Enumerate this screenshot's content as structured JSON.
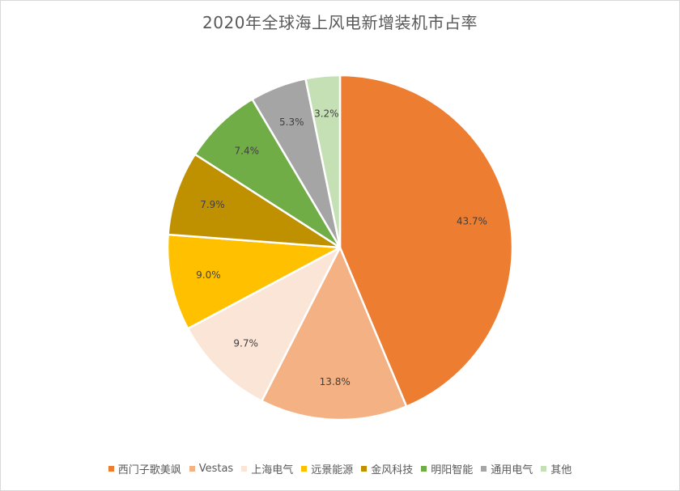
{
  "chart_data": {
    "type": "pie",
    "title": "2020年全球海上风电新增装机市占率",
    "legend_position": "bottom",
    "slices": [
      {
        "name": "西门子歌美飒",
        "value": 43.7,
        "label": "43.7%",
        "color": "#ED7D31"
      },
      {
        "name": "Vestas",
        "value": 13.8,
        "label": "13.8%",
        "color": "#F4B183"
      },
      {
        "name": "上海电气",
        "value": 9.7,
        "label": "9.7%",
        "color": "#FBE5D6"
      },
      {
        "name": "远景能源",
        "value": 9.0,
        "label": "9.0%",
        "color": "#FFC000"
      },
      {
        "name": "金风科技",
        "value": 7.9,
        "label": "7.9%",
        "color": "#BF9000"
      },
      {
        "name": "明阳智能",
        "value": 7.4,
        "label": "7.4%",
        "color": "#70AD47"
      },
      {
        "name": "通用电气",
        "value": 5.3,
        "label": "5.3%",
        "color": "#A5A5A5"
      },
      {
        "name": "其他",
        "value": 3.2,
        "label": "3.2%",
        "color": "#C5E0B4"
      }
    ]
  }
}
